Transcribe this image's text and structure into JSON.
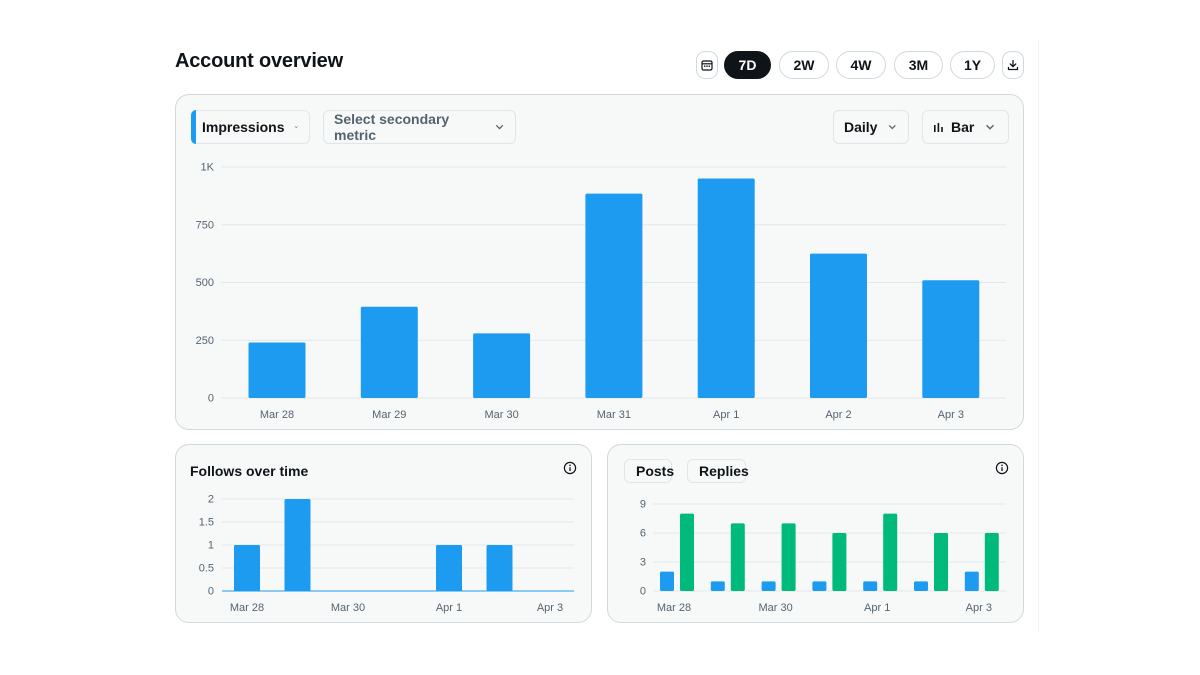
{
  "page": {
    "title": "Account overview"
  },
  "toolbar": {
    "calendar_icon": "calendar-icon",
    "ranges": [
      "7D",
      "2W",
      "4W",
      "3M",
      "1Y"
    ],
    "selected_range": "7D",
    "download_icon": "download-icon"
  },
  "main_chart": {
    "primary_metric": "Impressions",
    "secondary_metric_placeholder": "Select secondary metric",
    "granularity": "Daily",
    "chart_type_label": "Bar"
  },
  "follows_card": {
    "title": "Follows over time"
  },
  "posts_card": {
    "legend": [
      "Posts",
      "Replies"
    ]
  },
  "colors": {
    "blue": "#1d9bf0",
    "green": "#00ba7c",
    "dark": "#0f1419"
  },
  "chart_data": [
    {
      "type": "bar",
      "title": "Impressions",
      "categories": [
        "Mar 28",
        "Mar 29",
        "Mar 30",
        "Mar 31",
        "Apr 1",
        "Apr 2",
        "Apr 3"
      ],
      "values": [
        240,
        395,
        280,
        885,
        950,
        625,
        510
      ],
      "yticks": [
        "0",
        "250",
        "500",
        "750",
        "1K"
      ],
      "ylim": [
        0,
        1000
      ]
    },
    {
      "type": "bar",
      "title": "Follows over time",
      "categories": [
        "Mar 28",
        "Mar 29",
        "Mar 30",
        "Mar 31",
        "Apr 1",
        "Apr 2",
        "Apr 3"
      ],
      "xtick_labels": [
        "Mar 28",
        "",
        "Mar 30",
        "",
        "Apr 1",
        "",
        "Apr 3"
      ],
      "values": [
        1,
        2,
        0,
        0,
        1,
        1,
        0
      ],
      "yticks": [
        "0",
        "0.5",
        "1",
        "1.5",
        "2"
      ],
      "ylim": [
        0,
        2
      ]
    },
    {
      "type": "bar",
      "categories": [
        "Mar 28",
        "Mar 29",
        "Mar 30",
        "Mar 31",
        "Apr 1",
        "Apr 2",
        "Apr 3"
      ],
      "xtick_labels": [
        "Mar 28",
        "",
        "Mar 30",
        "",
        "Apr 1",
        "",
        "Apr 3"
      ],
      "series": [
        {
          "name": "Posts",
          "values": [
            2,
            1,
            1,
            1,
            1,
            1,
            2
          ]
        },
        {
          "name": "Replies",
          "values": [
            8,
            7,
            7,
            6,
            8,
            6,
            6
          ]
        }
      ],
      "yticks": [
        "0",
        "3",
        "6",
        "9"
      ],
      "ylim": [
        0,
        9
      ]
    }
  ]
}
